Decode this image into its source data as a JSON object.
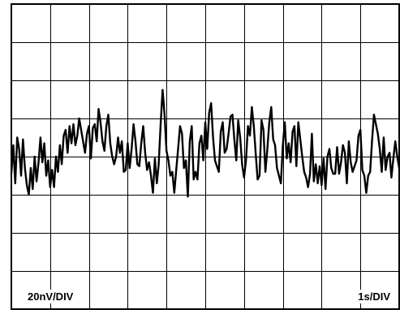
{
  "chart_data": {
    "type": "line",
    "title": "",
    "xlabel": "",
    "ylabel": "",
    "grid": true,
    "divisions": {
      "x": 10,
      "y": 8
    },
    "x_scale_label": "1s/DIV",
    "y_scale_label": "20nV/DIV",
    "x_range_s": [
      0,
      10
    ],
    "y_range_nV": [
      -80,
      80
    ],
    "series": [
      {
        "x": [
          0.0,
          0.05,
          0.1,
          0.15,
          0.2,
          0.25,
          0.3,
          0.35,
          0.4,
          0.45,
          0.5,
          0.55,
          0.6,
          0.65,
          0.7,
          0.75,
          0.8,
          0.85,
          0.9,
          0.95,
          1.0,
          1.05,
          1.1,
          1.15,
          1.2,
          1.25,
          1.3,
          1.35,
          1.4,
          1.45,
          1.5,
          1.55,
          1.6,
          1.65,
          1.7,
          1.75,
          1.8,
          1.85,
          1.9,
          1.95,
          2.0,
          2.05,
          2.1,
          2.15,
          2.2,
          2.25,
          2.3,
          2.35,
          2.4,
          2.45,
          2.5,
          2.55,
          2.6,
          2.65,
          2.7,
          2.75,
          2.8,
          2.85,
          2.9,
          2.95,
          3.0,
          3.05,
          3.1,
          3.15,
          3.2,
          3.25,
          3.3,
          3.35,
          3.4,
          3.45,
          3.5,
          3.55,
          3.6,
          3.65,
          3.7,
          3.75,
          3.8,
          3.85,
          3.9,
          3.95,
          4.0,
          4.05,
          4.1,
          4.15,
          4.2,
          4.25,
          4.3,
          4.35,
          4.4,
          4.45,
          4.5,
          4.55,
          4.6,
          4.65,
          4.7,
          4.75,
          4.8,
          4.85,
          4.9,
          4.95,
          5.0,
          5.05,
          5.1,
          5.15,
          5.2,
          5.25,
          5.3,
          5.35,
          5.4,
          5.45,
          5.5,
          5.55,
          5.6,
          5.65,
          5.7,
          5.75,
          5.8,
          5.85,
          5.9,
          5.95,
          6.0,
          6.05,
          6.1,
          6.15,
          6.2,
          6.25,
          6.3,
          6.35,
          6.4,
          6.45,
          6.5,
          6.55,
          6.6,
          6.65,
          6.7,
          6.75,
          6.8,
          6.85,
          6.9,
          6.95,
          7.0,
          7.05,
          7.1,
          7.15,
          7.2,
          7.25,
          7.3,
          7.35,
          7.4,
          7.45,
          7.5,
          7.55,
          7.6,
          7.65,
          7.7,
          7.75,
          7.8,
          7.85,
          7.9,
          7.95,
          8.0,
          8.05,
          8.1,
          8.15,
          8.2,
          8.25,
          8.3,
          8.35,
          8.4,
          8.45,
          8.5,
          8.55,
          8.6,
          8.65,
          8.7,
          8.75,
          8.8,
          8.85,
          8.9,
          8.95,
          9.0,
          9.05,
          9.1,
          9.15,
          9.2,
          9.25,
          9.3,
          9.35,
          9.4,
          9.45,
          9.5,
          9.55,
          9.6,
          9.65,
          9.7,
          9.75,
          9.8,
          9.85,
          9.9,
          9.95,
          10.0
        ],
        "y": [
          -9,
          6,
          -14,
          10,
          4,
          -10,
          9,
          -6,
          -15,
          -20,
          -6,
          -17,
          0,
          -13,
          -3,
          10,
          -3,
          7,
          -10,
          -2,
          -16,
          -7,
          -16,
          0,
          -8,
          6,
          -4,
          11,
          14,
          2,
          16,
          7,
          17,
          6,
          11,
          20,
          14,
          8,
          2,
          12,
          16,
          -1,
          15,
          17,
          8,
          25,
          18,
          8,
          3,
          16,
          22,
          7,
          0,
          -4,
          0,
          10,
          2,
          8,
          -8,
          -7,
          7,
          -6,
          4,
          17,
          8,
          -4,
          -5,
          7,
          16,
          2,
          -7,
          -3,
          -10,
          -19,
          -1,
          -14,
          -4,
          17,
          35,
          22,
          3,
          -2,
          -10,
          -8,
          -19,
          -7,
          4,
          16,
          12,
          -6,
          -2,
          -21,
          8,
          16,
          -12,
          -8,
          -12,
          7,
          11,
          -2,
          18,
          4,
          23,
          28,
          10,
          -2,
          -5,
          -8,
          13,
          18,
          2,
          4,
          12,
          21,
          22,
          9,
          -2,
          19,
          10,
          -4,
          -11,
          -2,
          16,
          11,
          26,
          16,
          2,
          -12,
          -10,
          19,
          14,
          -8,
          4,
          18,
          26,
          9,
          6,
          -6,
          -10,
          -14,
          6,
          18,
          -1,
          7,
          -3,
          13,
          16,
          -5,
          18,
          9,
          0,
          -8,
          -11,
          -16,
          -9,
          12,
          -13,
          -4,
          -14,
          -5,
          -15,
          -1,
          -17,
          0,
          4,
          -6,
          -9,
          -9,
          5,
          -9,
          -3,
          6,
          2,
          -14,
          8,
          -3,
          -8,
          -5,
          -2,
          11,
          14,
          -7,
          -10,
          -19,
          -10,
          -8,
          8,
          22,
          17,
          12,
          4,
          -8,
          10,
          -7,
          0,
          2,
          -11,
          -1,
          8,
          0,
          -6
        ]
      }
    ]
  }
}
